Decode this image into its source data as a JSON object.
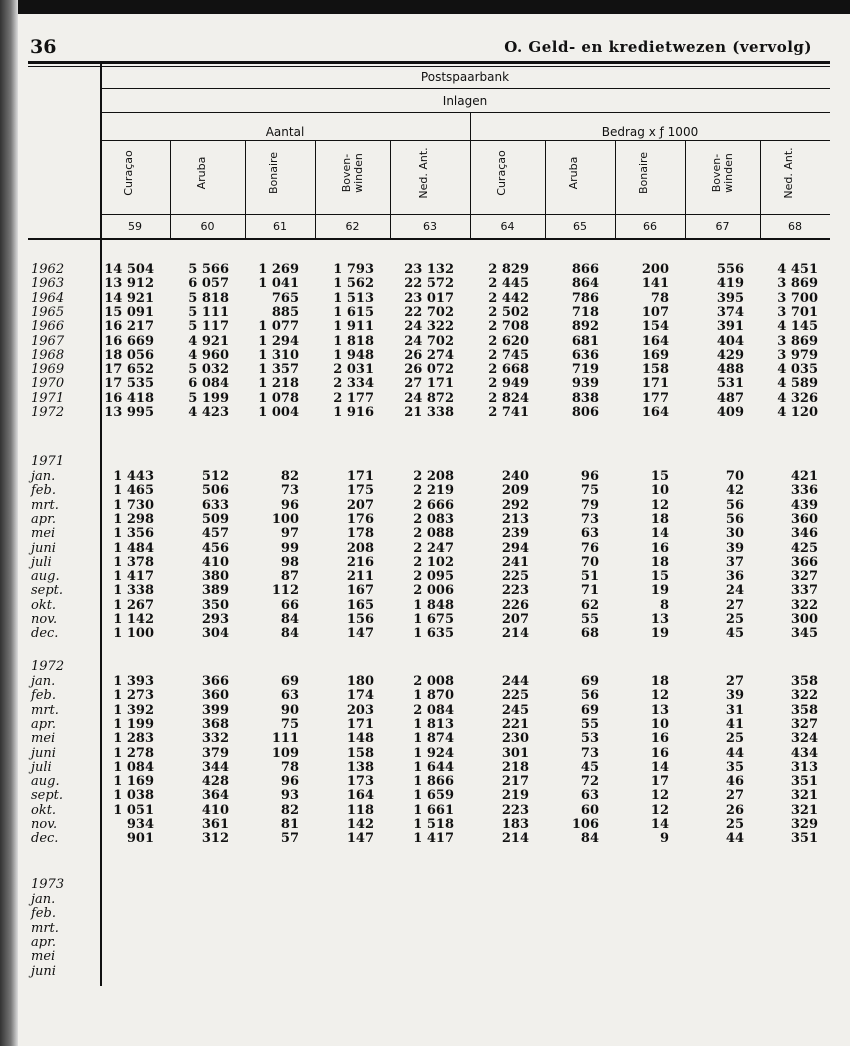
{
  "header": {
    "page_number": "36",
    "title": "O.  Geld- en kredietwezen (vervolg)"
  },
  "table": {
    "group": "Postspaarbank",
    "subgroup": "Inlagen",
    "aantal_label": "Aantal",
    "bedrag_label": "Bedrag x ƒ 1000",
    "columns": [
      "Curaçao",
      "Aruba",
      "Bonaire",
      "Boven-\nwinden",
      "Ned. Ant.",
      "Curaçao",
      "Aruba",
      "Bonaire",
      "Boven-\nwinden",
      "Ned. Ant."
    ],
    "column_numbers": [
      "59",
      "60",
      "61",
      "62",
      "63",
      "64",
      "65",
      "66",
      "67",
      "68"
    ],
    "sections": [
      {
        "label": "",
        "rows": [
          {
            "label": "1962",
            "values": [
              "14 504",
              "5 566",
              "1 269",
              "1 793",
              "23 132",
              "2 829",
              "866",
              "200",
              "556",
              "4 451"
            ]
          },
          {
            "label": "1963",
            "values": [
              "13 912",
              "6 057",
              "1 041",
              "1 562",
              "22 572",
              "2 445",
              "864",
              "141",
              "419",
              "3 869"
            ]
          },
          {
            "label": "1964",
            "values": [
              "14 921",
              "5 818",
              "765",
              "1 513",
              "23 017",
              "2 442",
              "786",
              "78",
              "395",
              "3 700"
            ]
          },
          {
            "label": "1965",
            "values": [
              "15 091",
              "5 111",
              "885",
              "1 615",
              "22 702",
              "2 502",
              "718",
              "107",
              "374",
              "3 701"
            ]
          },
          {
            "label": "1966",
            "values": [
              "16 217",
              "5 117",
              "1 077",
              "1 911",
              "24 322",
              "2 708",
              "892",
              "154",
              "391",
              "4 145"
            ]
          },
          {
            "label": "1967",
            "values": [
              "16 669",
              "4 921",
              "1 294",
              "1 818",
              "24 702",
              "2 620",
              "681",
              "164",
              "404",
              "3 869"
            ]
          },
          {
            "label": "1968",
            "values": [
              "18 056",
              "4 960",
              "1 310",
              "1 948",
              "26 274",
              "2 745",
              "636",
              "169",
              "429",
              "3 979"
            ]
          },
          {
            "label": "1969",
            "values": [
              "17 652",
              "5 032",
              "1 357",
              "2 031",
              "26 072",
              "2 668",
              "719",
              "158",
              "488",
              "4 035"
            ]
          },
          {
            "label": "1970",
            "values": [
              "17 535",
              "6 084",
              "1 218",
              "2 334",
              "27 171",
              "2 949",
              "939",
              "171",
              "531",
              "4 589"
            ]
          },
          {
            "label": "1971",
            "values": [
              "16 418",
              "5 199",
              "1 078",
              "2 177",
              "24 872",
              "2 824",
              "838",
              "177",
              "487",
              "4 326"
            ]
          },
          {
            "label": "1972",
            "values": [
              "13 995",
              "4 423",
              "1 004",
              "1 916",
              "21 338",
              "2 741",
              "806",
              "164",
              "409",
              "4 120"
            ]
          }
        ]
      },
      {
        "label": "1971",
        "rows": [
          {
            "label": "jan.",
            "values": [
              "1 443",
              "512",
              "82",
              "171",
              "2 208",
              "240",
              "96",
              "15",
              "70",
              "421"
            ]
          },
          {
            "label": "feb.",
            "values": [
              "1 465",
              "506",
              "73",
              "175",
              "2 219",
              "209",
              "75",
              "10",
              "42",
              "336"
            ]
          },
          {
            "label": "mrt.",
            "values": [
              "1 730",
              "633",
              "96",
              "207",
              "2 666",
              "292",
              "79",
              "12",
              "56",
              "439"
            ]
          },
          {
            "label": "apr.",
            "values": [
              "1 298",
              "509",
              "100",
              "176",
              "2 083",
              "213",
              "73",
              "18",
              "56",
              "360"
            ]
          },
          {
            "label": "mei",
            "values": [
              "1 356",
              "457",
              "97",
              "178",
              "2 088",
              "239",
              "63",
              "14",
              "30",
              "346"
            ]
          },
          {
            "label": "juni",
            "values": [
              "1 484",
              "456",
              "99",
              "208",
              "2 247",
              "294",
              "76",
              "16",
              "39",
              "425"
            ]
          },
          {
            "label": "juli",
            "values": [
              "1 378",
              "410",
              "98",
              "216",
              "2 102",
              "241",
              "70",
              "18",
              "37",
              "366"
            ]
          },
          {
            "label": "aug.",
            "values": [
              "1 417",
              "380",
              "87",
              "211",
              "2 095",
              "225",
              "51",
              "15",
              "36",
              "327"
            ]
          },
          {
            "label": "sept.",
            "values": [
              "1 338",
              "389",
              "112",
              "167",
              "2 006",
              "223",
              "71",
              "19",
              "24",
              "337"
            ]
          },
          {
            "label": "okt.",
            "values": [
              "1 267",
              "350",
              "66",
              "165",
              "1 848",
              "226",
              "62",
              "8",
              "27",
              "322"
            ]
          },
          {
            "label": "nov.",
            "values": [
              "1 142",
              "293",
              "84",
              "156",
              "1 675",
              "207",
              "55",
              "13",
              "25",
              "300"
            ]
          },
          {
            "label": "dec.",
            "values": [
              "1 100",
              "304",
              "84",
              "147",
              "1 635",
              "214",
              "68",
              "19",
              "45",
              "345"
            ]
          }
        ]
      },
      {
        "label": "1972",
        "rows": [
          {
            "label": "jan.",
            "values": [
              "1 393",
              "366",
              "69",
              "180",
              "2 008",
              "244",
              "69",
              "18",
              "27",
              "358"
            ]
          },
          {
            "label": "feb.",
            "values": [
              "1 273",
              "360",
              "63",
              "174",
              "1 870",
              "225",
              "56",
              "12",
              "39",
              "322"
            ]
          },
          {
            "label": "mrt.",
            "values": [
              "1 392",
              "399",
              "90",
              "203",
              "2 084",
              "245",
              "69",
              "13",
              "31",
              "358"
            ]
          },
          {
            "label": "apr.",
            "values": [
              "1 199",
              "368",
              "75",
              "171",
              "1 813",
              "221",
              "55",
              "10",
              "41",
              "327"
            ]
          },
          {
            "label": "mei",
            "values": [
              "1 283",
              "332",
              "111",
              "148",
              "1 874",
              "230",
              "53",
              "16",
              "25",
              "324"
            ]
          },
          {
            "label": "juni",
            "values": [
              "1 278",
              "379",
              "109",
              "158",
              "1 924",
              "301",
              "73",
              "16",
              "44",
              "434"
            ]
          },
          {
            "label": "juli",
            "values": [
              "1 084",
              "344",
              "78",
              "138",
              "1 644",
              "218",
              "45",
              "14",
              "35",
              "313"
            ]
          },
          {
            "label": "aug.",
            "values": [
              "1 169",
              "428",
              "96",
              "173",
              "1 866",
              "217",
              "72",
              "17",
              "46",
              "351"
            ]
          },
          {
            "label": "sept.",
            "values": [
              "1 038",
              "364",
              "93",
              "164",
              "1 659",
              "219",
              "63",
              "12",
              "27",
              "321"
            ]
          },
          {
            "label": "okt.",
            "values": [
              "1 051",
              "410",
              "82",
              "118",
              "1 661",
              "223",
              "60",
              "12",
              "26",
              "321"
            ]
          },
          {
            "label": "nov.",
            "values": [
              "934",
              "361",
              "81",
              "142",
              "1 518",
              "183",
              "106",
              "14",
              "25",
              "329"
            ]
          },
          {
            "label": "dec.",
            "values": [
              "901",
              "312",
              "57",
              "147",
              "1 417",
              "214",
              "84",
              "9",
              "44",
              "351"
            ]
          }
        ]
      },
      {
        "label": "1973",
        "rows": [
          {
            "label": "jan.",
            "values": []
          },
          {
            "label": "feb.",
            "values": []
          },
          {
            "label": "mrt.",
            "values": []
          },
          {
            "label": "apr.",
            "values": []
          },
          {
            "label": "mei",
            "values": []
          },
          {
            "label": "juni",
            "values": []
          }
        ]
      }
    ]
  }
}
